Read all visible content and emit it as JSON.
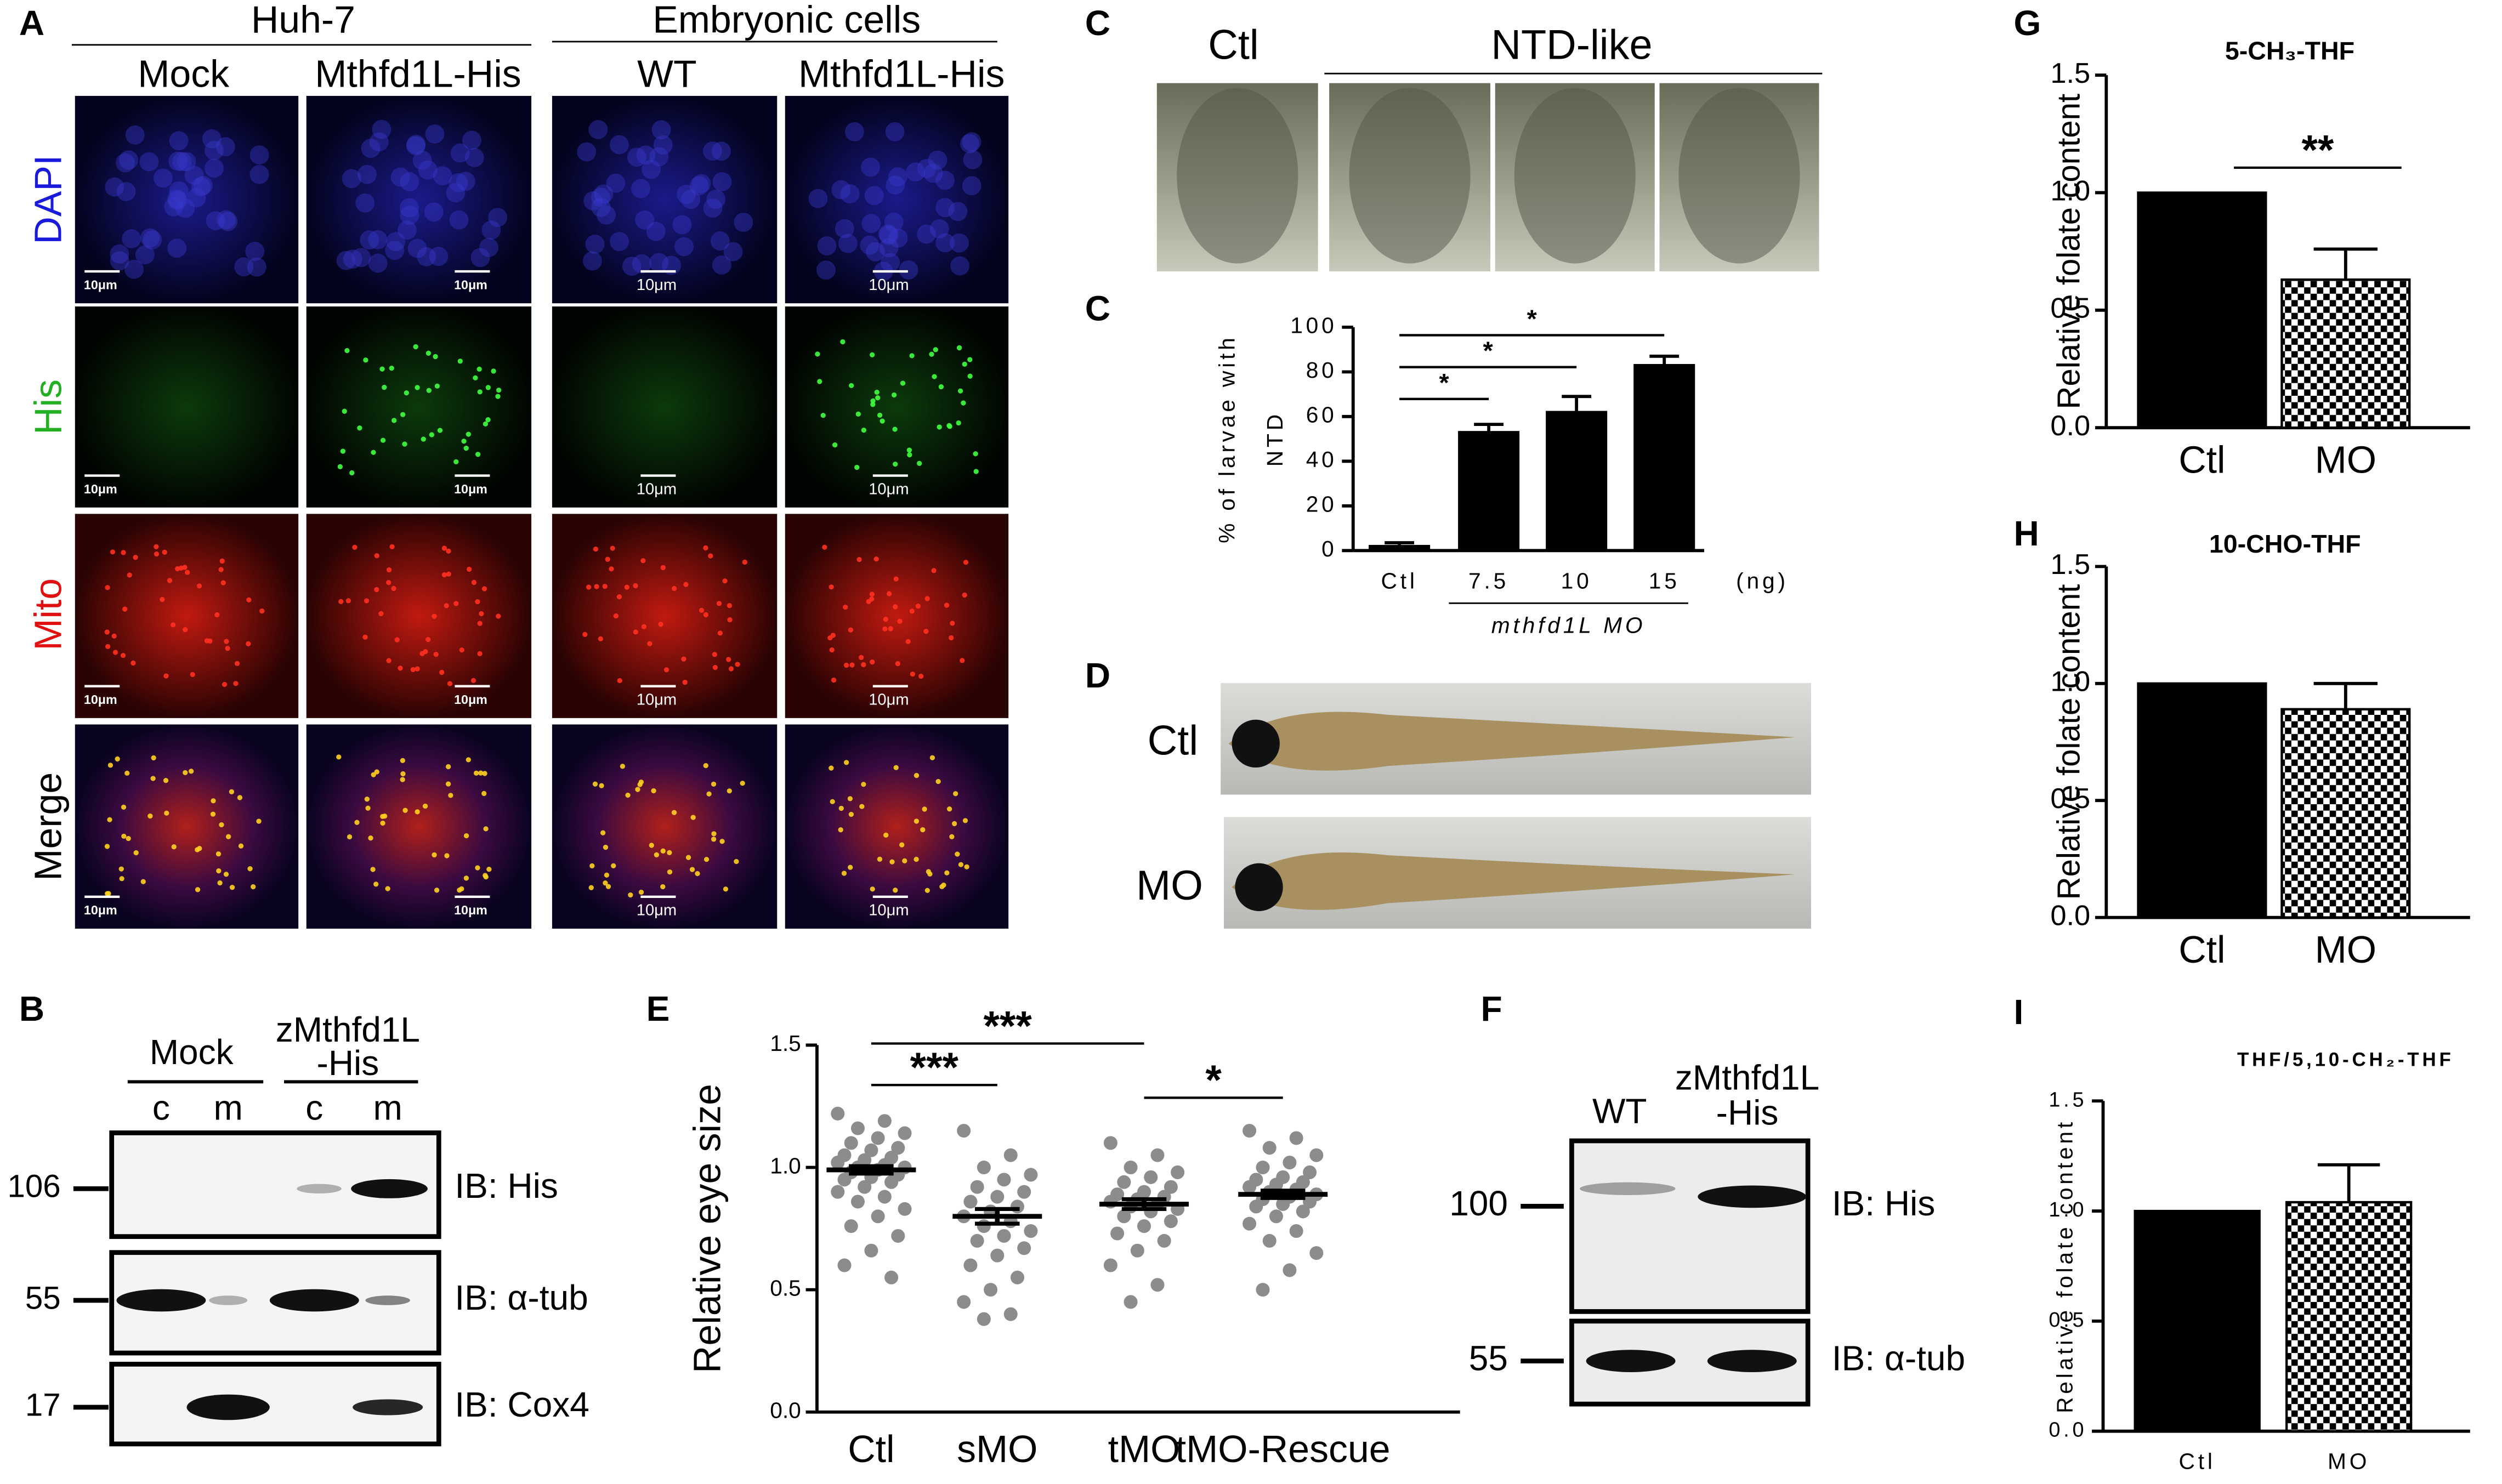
{
  "panels": {
    "A": {
      "letter": "A",
      "groups": [
        "Huh-7",
        "Embryonic cells"
      ],
      "columns": [
        "Mock",
        "Mthfd1L-His",
        "WT",
        "Mthfd1L-His"
      ],
      "rows": [
        "DAPI",
        "His",
        "Mito",
        "Merge"
      ],
      "scale_labels": [
        "10μm",
        "10μm",
        "10μm",
        "10μm",
        "10μm",
        "10μm",
        "10μm",
        "10μm",
        "10μm",
        "10μm",
        "10μm",
        "10μm",
        "10μm",
        "10μm",
        "10μm",
        "10μm"
      ]
    },
    "B": {
      "letter": "B",
      "group1": "Mock",
      "group2": [
        "zMthfd1L",
        "-His"
      ],
      "lanes": [
        "c",
        "m",
        "c",
        "m"
      ],
      "markers": [
        106,
        55,
        17
      ],
      "blots": [
        "IB: His",
        "IB: α-tub",
        "IB: Cox4"
      ]
    },
    "C": {
      "letter": "C",
      "ctl": "Ctl",
      "ntd": "NTD-like"
    },
    "D": {
      "letter": "D",
      "rows": [
        "Ctl",
        "MO"
      ]
    },
    "F": {
      "letter": "F",
      "lane1": "WT",
      "lane2": [
        "zMthfd1L",
        "-His"
      ],
      "markers": [
        100,
        55
      ],
      "blots": [
        "IB: His",
        "IB: α-tub"
      ]
    }
  },
  "chart_data": [
    {
      "letter": "C",
      "type": "bar",
      "ylabel": [
        "% of larvae with",
        "NTD"
      ],
      "categories": [
        "Ctl",
        "7.5",
        "10",
        "15"
      ],
      "unit": "(ng)",
      "group_label": "mthfd1L MO",
      "values": [
        2,
        53,
        62,
        83
      ],
      "errors": [
        1.5,
        3.5,
        7,
        4
      ],
      "color": "#000000",
      "fills": [
        "solid",
        "solid",
        "solid",
        "solid"
      ],
      "ylim": [
        0,
        100
      ],
      "yticks": [
        0,
        20,
        40,
        60,
        80,
        100
      ],
      "annotations": [
        "*",
        "*",
        "*"
      ]
    },
    {
      "letter": "E",
      "type": "dot",
      "ylabel": "Relative eye size",
      "categories": [
        "Ctl",
        "sMO",
        "tMO",
        "tMO-Rescue"
      ],
      "points": [
        [
          1.22,
          1.19,
          1.16,
          1.14,
          1.12,
          1.1,
          1.08,
          1.07,
          1.05,
          1.04,
          1.03,
          1.02,
          1.01,
          1.0,
          1.0,
          0.99,
          0.98,
          0.97,
          0.96,
          0.95,
          0.94,
          0.92,
          0.9,
          0.88,
          0.86,
          0.83,
          0.8,
          0.76,
          0.72,
          0.66,
          0.6,
          0.55
        ],
        [
          1.15,
          1.05,
          1.0,
          0.97,
          0.95,
          0.92,
          0.9,
          0.88,
          0.86,
          0.84,
          0.82,
          0.8,
          0.78,
          0.76,
          0.74,
          0.72,
          0.7,
          0.67,
          0.64,
          0.6,
          0.55,
          0.5,
          0.45,
          0.4,
          0.38
        ],
        [
          1.1,
          1.05,
          1.0,
          0.98,
          0.96,
          0.94,
          0.92,
          0.9,
          0.89,
          0.88,
          0.87,
          0.86,
          0.85,
          0.84,
          0.83,
          0.82,
          0.8,
          0.78,
          0.76,
          0.73,
          0.7,
          0.66,
          0.6,
          0.52,
          0.45
        ],
        [
          1.15,
          1.12,
          1.08,
          1.05,
          1.02,
          1.0,
          0.98,
          0.96,
          0.95,
          0.94,
          0.93,
          0.92,
          0.91,
          0.9,
          0.89,
          0.88,
          0.87,
          0.86,
          0.85,
          0.84,
          0.82,
          0.8,
          0.77,
          0.74,
          0.7,
          0.65,
          0.58,
          0.5
        ]
      ],
      "means": [
        0.99,
        0.8,
        0.85,
        0.89
      ],
      "errors": [
        0.015,
        0.03,
        0.02,
        0.015
      ],
      "color": "#8c8c8c",
      "ylim": [
        0,
        1.5
      ],
      "yticks": [
        {
          "value": 0,
          "label": "0.0"
        },
        0.5,
        {
          "value": 1,
          "label": "1.0"
        },
        1.5
      ],
      "annotations": [
        "***",
        "***",
        "*"
      ]
    },
    {
      "letter": "G",
      "type": "bar",
      "title": "5-CH₃-THF",
      "ylabel": "Relative folate content",
      "categories": [
        "Ctl",
        "MO"
      ],
      "values": [
        1.0,
        0.63
      ],
      "errors": [
        null,
        0.13
      ],
      "color": "#000000",
      "fills": [
        "solid",
        "checkered"
      ],
      "ylim": [
        0,
        1.5
      ],
      "yticks": [
        {
          "value": 0,
          "label": "0.0"
        },
        0.5,
        {
          "value": 1,
          "label": "1.0"
        },
        1.5
      ],
      "annotations": [
        "**"
      ]
    },
    {
      "letter": "H",
      "type": "bar",
      "title": "10-CHO-THF",
      "ylabel": "Relative folate content",
      "categories": [
        "Ctl",
        "MO"
      ],
      "values": [
        1.0,
        0.89
      ],
      "errors": [
        null,
        0.11
      ],
      "color": "#000000",
      "fills": [
        "solid",
        "checkered"
      ],
      "ylim": [
        0,
        1.5
      ],
      "yticks": [
        {
          "value": 0,
          "label": "0.0"
        },
        0.5,
        {
          "value": 1,
          "label": "1.0"
        },
        1.5
      ],
      "annotations": []
    },
    {
      "letter": "I",
      "type": "bar",
      "title": "THF/5,10-CH₂-THF",
      "ylabel": "Relative folate content",
      "categories": [
        "Ctl",
        "MO"
      ],
      "values": [
        1.0,
        1.04
      ],
      "errors": [
        null,
        0.17
      ],
      "color": "#000000",
      "fills": [
        "solid",
        "checkered"
      ],
      "ylim": [
        0,
        1.5
      ],
      "yticks": [
        {
          "value": 0,
          "label": "0.0"
        },
        0.5,
        {
          "value": 1,
          "label": "1.0"
        },
        1.5
      ],
      "annotations": []
    }
  ]
}
